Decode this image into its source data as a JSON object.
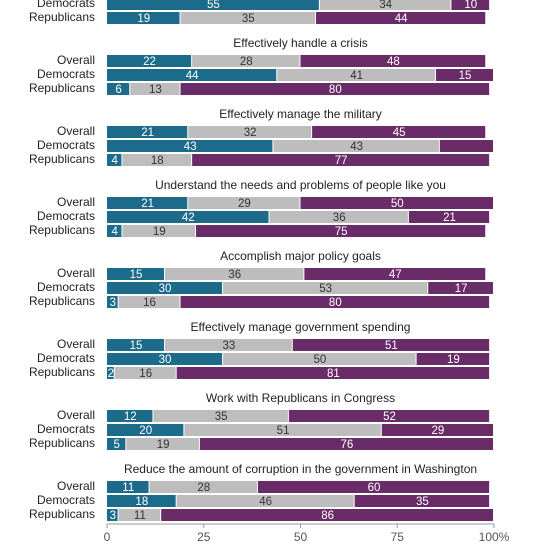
{
  "chart_data": {
    "type": "stacked-bar-groups",
    "xlim": [
      0,
      100
    ],
    "xticks": [
      0,
      25,
      50,
      75,
      {
        "value": 100,
        "label": "100%"
      }
    ],
    "colors": [
      "#1d6b8a",
      "#bdbdbd",
      "#6a2c69"
    ],
    "groups": [
      {
        "categories": [
          "Democrats",
          "Republicans"
        ],
        "series": [
          {
            "values": [
              55,
              19
            ]
          },
          {
            "values": [
              34,
              35
            ]
          },
          {
            "values": [
              10,
              44
            ]
          }
        ]
      },
      {
        "title": "Effectively handle a crisis",
        "categories": [
          "Overall",
          "Democrats",
          "Republicans"
        ],
        "series": [
          {
            "values": [
              22,
              44,
              6
            ]
          },
          {
            "values": [
              28,
              41,
              13
            ]
          },
          {
            "values": [
              48,
              15,
              80
            ]
          }
        ]
      },
      {
        "title": "Effectively manage the military",
        "categories": [
          "Overall",
          "Democrats",
          "Republicans"
        ],
        "series": [
          {
            "values": [
              21,
              43,
              4
            ]
          },
          {
            "values": [
              32,
              43,
              18
            ]
          },
          {
            "values": [
              45,
              14,
              77
            ],
            "value_labels": [
              "45",
              null,
              "77"
            ]
          }
        ]
      },
      {
        "title": "Understand the needs and problems of people like you",
        "categories": [
          "Overall",
          "Democrats",
          "Republicans"
        ],
        "series": [
          {
            "values": [
              21,
              42,
              4
            ]
          },
          {
            "values": [
              29,
              36,
              19
            ]
          },
          {
            "values": [
              50,
              21,
              75
            ]
          }
        ]
      },
      {
        "title": "Accomplish major policy goals",
        "categories": [
          "Overall",
          "Democrats",
          "Republicans"
        ],
        "series": [
          {
            "values": [
              15,
              30,
              3
            ]
          },
          {
            "values": [
              36,
              53,
              16
            ]
          },
          {
            "values": [
              47,
              17,
              80
            ]
          }
        ]
      },
      {
        "title": "Effectively manage government spending",
        "categories": [
          "Overall",
          "Democrats",
          "Republicans"
        ],
        "series": [
          {
            "values": [
              15,
              30,
              2
            ]
          },
          {
            "values": [
              33,
              50,
              16
            ]
          },
          {
            "values": [
              51,
              19,
              81
            ]
          }
        ]
      },
      {
        "title": "Work with Republicans in Congress",
        "categories": [
          "Overall",
          "Democrats",
          "Republicans"
        ],
        "series": [
          {
            "values": [
              12,
              20,
              5
            ]
          },
          {
            "values": [
              35,
              51,
              19
            ]
          },
          {
            "values": [
              52,
              29,
              76
            ]
          }
        ]
      },
      {
        "title": "Reduce the amount of corruption in the government in Washington",
        "categories": [
          "Overall",
          "Democrats",
          "Republicans"
        ],
        "series": [
          {
            "values": [
              11,
              18,
              3
            ]
          },
          {
            "values": [
              28,
              46,
              11
            ]
          },
          {
            "values": [
              60,
              35,
              86
            ]
          }
        ]
      }
    ]
  }
}
